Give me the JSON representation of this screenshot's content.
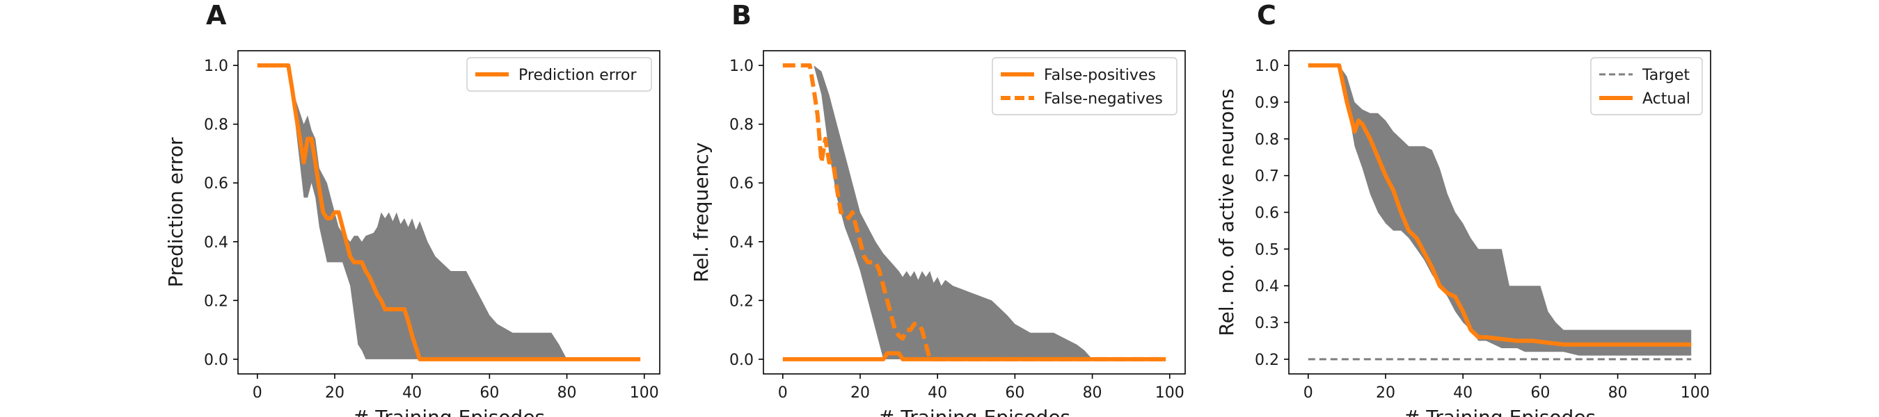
{
  "colors": {
    "line": "#ff7f0e",
    "band": "#808080",
    "target": "#7f7f7f",
    "axes": "#000000"
  },
  "chart_data": [
    {
      "panel": "A",
      "type": "line",
      "xlabel": "# Training Episodes",
      "ylabel": "Prediction error",
      "xlim": [
        -5,
        104
      ],
      "ylim": [
        -0.05,
        1.05
      ],
      "xticks": [
        0,
        20,
        40,
        60,
        80,
        100
      ],
      "yticks": [
        0.0,
        0.2,
        0.4,
        0.6,
        0.8,
        1.0
      ],
      "ytick_decimals": 1,
      "legend_position": "top-right",
      "band": {
        "x": [
          0,
          8,
          10,
          12,
          13,
          14,
          15,
          16,
          18,
          19,
          20,
          21,
          22,
          24,
          25,
          26,
          27,
          28,
          30,
          31,
          32,
          33,
          34,
          35,
          36,
          37,
          38,
          39,
          40,
          41,
          42,
          44,
          46,
          50,
          54,
          58,
          60,
          62,
          66,
          70,
          74,
          76,
          78,
          80,
          99
        ],
        "lower": [
          1.0,
          1.0,
          0.78,
          0.55,
          0.55,
          0.6,
          0.55,
          0.45,
          0.33,
          0.33,
          0.33,
          0.33,
          0.33,
          0.25,
          0.15,
          0.05,
          0.03,
          0.0,
          0.0,
          0.0,
          0.0,
          0.0,
          0.0,
          0.0,
          0.0,
          0.0,
          0.0,
          0.0,
          0.0,
          0.0,
          0.0,
          0.0,
          0.0,
          0.0,
          0.0,
          0.0,
          0.0,
          0.0,
          0.0,
          0.0,
          0.0,
          0.0,
          0.0,
          0.0,
          0.0
        ],
        "upper": [
          1.0,
          1.0,
          0.88,
          0.8,
          0.83,
          0.78,
          0.75,
          0.65,
          0.6,
          0.55,
          0.5,
          0.45,
          0.43,
          0.4,
          0.42,
          0.42,
          0.4,
          0.42,
          0.43,
          0.45,
          0.5,
          0.48,
          0.5,
          0.47,
          0.5,
          0.46,
          0.48,
          0.45,
          0.48,
          0.44,
          0.47,
          0.4,
          0.35,
          0.3,
          0.3,
          0.2,
          0.15,
          0.12,
          0.09,
          0.09,
          0.09,
          0.09,
          0.05,
          0.0,
          0.0
        ]
      },
      "series": [
        {
          "name": "Prediction error",
          "style": "solid",
          "x": [
            0,
            8,
            9,
            10,
            11,
            12,
            13,
            14,
            15,
            16,
            17,
            18,
            19,
            20,
            21,
            22,
            23,
            24,
            25,
            26,
            27,
            28,
            29,
            30,
            31,
            32,
            33,
            34,
            38,
            39,
            40,
            41,
            42,
            43,
            99
          ],
          "y": [
            1.0,
            1.0,
            0.92,
            0.83,
            0.75,
            0.67,
            0.75,
            0.75,
            0.67,
            0.58,
            0.5,
            0.48,
            0.48,
            0.5,
            0.5,
            0.45,
            0.4,
            0.35,
            0.33,
            0.33,
            0.33,
            0.3,
            0.28,
            0.25,
            0.22,
            0.2,
            0.17,
            0.17,
            0.17,
            0.13,
            0.08,
            0.04,
            0.0,
            0.0,
            0.0
          ]
        }
      ]
    },
    {
      "panel": "B",
      "type": "line",
      "xlabel": "# Training Episodes",
      "ylabel": "Rel. frequency",
      "xlim": [
        -5,
        104
      ],
      "ylim": [
        -0.05,
        1.05
      ],
      "xticks": [
        0,
        20,
        40,
        60,
        80,
        100
      ],
      "yticks": [
        0.0,
        0.2,
        0.4,
        0.6,
        0.8,
        1.0
      ],
      "ytick_decimals": 1,
      "legend_position": "top-right",
      "band": {
        "x": [
          0,
          8,
          10,
          12,
          13,
          14,
          15,
          16,
          18,
          20,
          22,
          24,
          25,
          26,
          28,
          30,
          31,
          32,
          33,
          34,
          35,
          36,
          37,
          38,
          39,
          40,
          41,
          42,
          44,
          46,
          50,
          54,
          58,
          60,
          64,
          70,
          76,
          78,
          80,
          99
        ],
        "lower": [
          0.0,
          0.0,
          0.0,
          0.0,
          0.0,
          0.0,
          0.0,
          0.0,
          0.0,
          0.0,
          0.0,
          0.0,
          0.0,
          0.0,
          0.0,
          0.0,
          0.0,
          0.0,
          0.0,
          0.0,
          0.0,
          0.0,
          0.0,
          0.0,
          0.0,
          0.0,
          0.0,
          0.0,
          0.0,
          0.0,
          0.0,
          0.0,
          0.0,
          0.0,
          0.0,
          0.0,
          0.0,
          0.0,
          0.0,
          0.0
        ],
        "upper": [
          0.0,
          0.0,
          0.0,
          0.0,
          0.0,
          0.0,
          0.0,
          0.0,
          0.0,
          0.0,
          0.0,
          0.0,
          0.0,
          0.0,
          0.28,
          0.3,
          0.28,
          0.3,
          0.28,
          0.3,
          0.27,
          0.3,
          0.28,
          0.3,
          0.26,
          0.28,
          0.25,
          0.27,
          0.25,
          0.24,
          0.22,
          0.2,
          0.15,
          0.12,
          0.09,
          0.09,
          0.05,
          0.03,
          0.0,
          0.0
        ]
      },
      "band2": {
        "x": [
          8,
          10,
          12,
          14,
          16,
          18,
          20,
          22,
          24,
          26,
          28,
          30,
          32,
          34,
          36,
          38,
          40,
          42
        ],
        "lower": [
          1.0,
          0.9,
          0.7,
          0.55,
          0.45,
          0.38,
          0.3,
          0.2,
          0.1,
          0.0,
          0.0,
          0.0,
          0.0,
          0.0,
          0.0,
          0.0,
          0.0,
          0.0
        ],
        "upper": [
          1.0,
          0.98,
          0.9,
          0.8,
          0.7,
          0.6,
          0.5,
          0.45,
          0.4,
          0.36,
          0.33,
          0.3,
          0.25,
          0.2,
          0.15,
          0.1,
          0.05,
          0.0
        ]
      },
      "series": [
        {
          "name": "False-positives",
          "style": "solid",
          "x": [
            0,
            26,
            27,
            28,
            29,
            30,
            31,
            99
          ],
          "y": [
            0.0,
            0.0,
            0.02,
            0.02,
            0.02,
            0.02,
            0.0,
            0.0
          ]
        },
        {
          "name": "False-negatives",
          "style": "dashed",
          "x": [
            0,
            7,
            8,
            9,
            10,
            11,
            12,
            13,
            14,
            15,
            16,
            17,
            18,
            19,
            20,
            21,
            22,
            23,
            24,
            25,
            26,
            27,
            28,
            29,
            30,
            31,
            32,
            33,
            34,
            35,
            36,
            37,
            38,
            39,
            40,
            41,
            42,
            99
          ],
          "y": [
            1.0,
            1.0,
            0.92,
            0.83,
            0.67,
            0.75,
            0.67,
            0.67,
            0.58,
            0.5,
            0.5,
            0.48,
            0.5,
            0.45,
            0.4,
            0.35,
            0.33,
            0.33,
            0.33,
            0.3,
            0.25,
            0.2,
            0.15,
            0.1,
            0.08,
            0.07,
            0.1,
            0.1,
            0.12,
            0.12,
            0.1,
            0.05,
            0.0,
            0.0,
            0.0,
            0.0,
            0.0,
            0.0
          ]
        }
      ]
    },
    {
      "panel": "C",
      "type": "line",
      "xlabel": "# Training Episodes",
      "ylabel": "Rel. no. of active neurons",
      "xlim": [
        -5,
        104
      ],
      "ylim": [
        0.16,
        1.04
      ],
      "xticks": [
        0,
        20,
        40,
        60,
        80,
        100
      ],
      "yticks": [
        0.2,
        0.3,
        0.4,
        0.5,
        0.6,
        0.7,
        0.8,
        0.9,
        1.0
      ],
      "ytick_decimals": 1,
      "legend_position": "top-right",
      "band": {
        "x": [
          0,
          8,
          10,
          12,
          14,
          16,
          18,
          20,
          22,
          24,
          26,
          28,
          30,
          32,
          34,
          36,
          38,
          40,
          42,
          44,
          46,
          48,
          50,
          52,
          54,
          56,
          58,
          60,
          62,
          64,
          66,
          70,
          80,
          90,
          99
        ],
        "lower": [
          1.0,
          1.0,
          0.9,
          0.78,
          0.72,
          0.65,
          0.6,
          0.57,
          0.55,
          0.55,
          0.53,
          0.5,
          0.47,
          0.43,
          0.4,
          0.37,
          0.33,
          0.3,
          0.28,
          0.25,
          0.25,
          0.24,
          0.23,
          0.23,
          0.23,
          0.22,
          0.22,
          0.22,
          0.22,
          0.22,
          0.22,
          0.21,
          0.21,
          0.21,
          0.21
        ],
        "upper": [
          1.0,
          1.0,
          0.97,
          0.9,
          0.88,
          0.87,
          0.87,
          0.85,
          0.82,
          0.8,
          0.78,
          0.78,
          0.78,
          0.77,
          0.72,
          0.65,
          0.6,
          0.57,
          0.53,
          0.5,
          0.5,
          0.5,
          0.5,
          0.4,
          0.4,
          0.4,
          0.4,
          0.4,
          0.33,
          0.3,
          0.28,
          0.28,
          0.28,
          0.28,
          0.28
        ]
      },
      "series": [
        {
          "name": "Target",
          "style": "dashed-thin",
          "x": [
            0,
            99
          ],
          "y": [
            0.2,
            0.2
          ]
        },
        {
          "name": "Actual",
          "style": "solid",
          "x": [
            0,
            8,
            10,
            12,
            13,
            14,
            16,
            18,
            20,
            22,
            24,
            26,
            28,
            30,
            32,
            34,
            36,
            38,
            40,
            42,
            44,
            46,
            50,
            54,
            58,
            62,
            66,
            70,
            80,
            90,
            99
          ],
          "y": [
            1.0,
            1.0,
            0.9,
            0.82,
            0.85,
            0.84,
            0.8,
            0.75,
            0.7,
            0.66,
            0.6,
            0.55,
            0.53,
            0.49,
            0.45,
            0.4,
            0.38,
            0.37,
            0.33,
            0.28,
            0.26,
            0.26,
            0.255,
            0.25,
            0.25,
            0.245,
            0.24,
            0.24,
            0.24,
            0.24,
            0.24
          ]
        }
      ]
    }
  ]
}
